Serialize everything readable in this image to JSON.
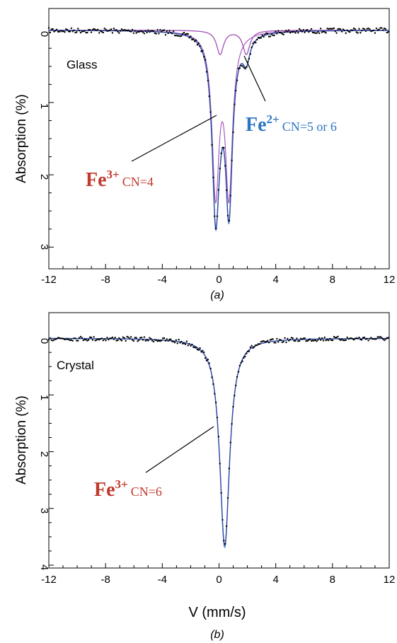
{
  "chart_data": [
    {
      "type": "scatter",
      "panel": "(a)",
      "sample_label": "Glass",
      "ylabel": "Absorption (%)",
      "xlabel": "",
      "xlim": [
        -12,
        12
      ],
      "ylim": [
        3.3,
        -0.3
      ],
      "y_inverted": true,
      "xticks": [
        "-12",
        "-8",
        "-4",
        "0",
        "4",
        "8",
        "12"
      ],
      "yticks": [
        "0",
        "1",
        "2",
        "3"
      ],
      "fit_components": [
        {
          "label": "Fe3+ CN=4",
          "type": "doublet",
          "center": 0.23,
          "splitting": 0.94,
          "half_width": 0.3,
          "depth": 2.35,
          "color": "#3a47a0"
        },
        {
          "label": "Fe2+ CN=5 or 6",
          "type": "doublet",
          "center": 1.0,
          "splitting": 1.85,
          "half_width": 0.3,
          "depth": 0.33,
          "color": "#a24fb8"
        }
      ],
      "annotations": [
        {
          "ion": "Fe",
          "charge": "3+",
          "cn": "CN=4",
          "color": "#c0392b",
          "target": [
            -0.2,
            1.1
          ]
        },
        {
          "ion": "Fe",
          "charge": "2+",
          "cn": "CN=5 or 6",
          "color": "#2e75c1",
          "target": [
            1.9,
            0.3
          ]
        }
      ],
      "colors": {
        "data": "#000000",
        "total_fit": "#3a47a0",
        "envelope": "#5b9bd5",
        "component": "#a24fb8"
      }
    },
    {
      "type": "scatter",
      "panel": "(b)",
      "sample_label": "Crystal",
      "ylabel": "Absorption (%)",
      "xlabel": "V (mm/s)",
      "xlim": [
        -12,
        12
      ],
      "ylim": [
        4.05,
        -0.45
      ],
      "y_inverted": true,
      "xticks": [
        "-12",
        "-8",
        "-4",
        "0",
        "4",
        "8",
        "12"
      ],
      "yticks": [
        "0",
        "1",
        "2",
        "3",
        "4"
      ],
      "fit_components": [
        {
          "label": "Fe3+ CN=6",
          "type": "singlet",
          "center": 0.4,
          "half_width": 0.42,
          "depth": 3.65,
          "color": "#3a47a0"
        }
      ],
      "annotations": [
        {
          "ion": "Fe",
          "charge": "3+",
          "cn": "CN=6",
          "color": "#c0392b",
          "target": [
            0.1,
            1.5
          ]
        }
      ],
      "colors": {
        "data": "#000000",
        "total_fit": "#3a47a0",
        "envelope": "#5b9bd5"
      }
    }
  ]
}
